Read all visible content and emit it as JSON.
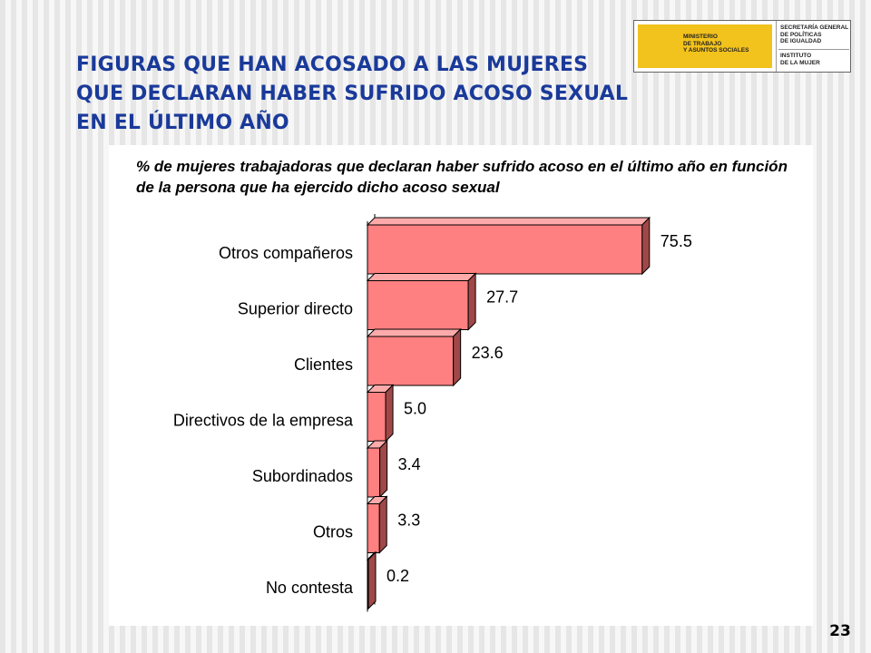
{
  "slide": {
    "title": "FIGURAS QUE HAN ACOSADO A LAS MUJERES QUE DECLARAN HABER SUFRIDO ACOSO SEXUAL EN EL ÚLTIMO AÑO",
    "page_number": "23"
  },
  "logo": {
    "ministerio": "MINISTERIO\nDE TRABAJO\nY ASUNTOS SOCIALES",
    "secretaria": "SECRETARÍA GENERAL\nDE POLÍTICAS\nDE IGUALDAD",
    "instituto": "INSTITUTO\nDE LA MUJER"
  },
  "chart_data": {
    "type": "bar",
    "orientation": "horizontal",
    "subtitle": "% de mujeres trabajadoras que declaran haber sufrido acoso en el último año en función de la persona que ha ejercido dicho acoso sexual",
    "categories": [
      "Otros compañeros",
      "Superior directo",
      "Clientes",
      "Directivos de la empresa",
      "Subordinados",
      "Otros",
      "No contesta"
    ],
    "values": [
      75.5,
      27.7,
      23.6,
      5.0,
      3.4,
      3.3,
      0.2
    ],
    "value_labels": [
      "75.5",
      "27.7",
      "23.6",
      "5.0",
      "3.4",
      "3.3",
      "0.2"
    ],
    "xlim": [
      0,
      80
    ],
    "grid": false,
    "legend": "none",
    "colors": {
      "bar_front": "#ff8080",
      "bar_top": "#ffaaaa",
      "bar_side": "#a04848",
      "outline": "#000000"
    }
  }
}
